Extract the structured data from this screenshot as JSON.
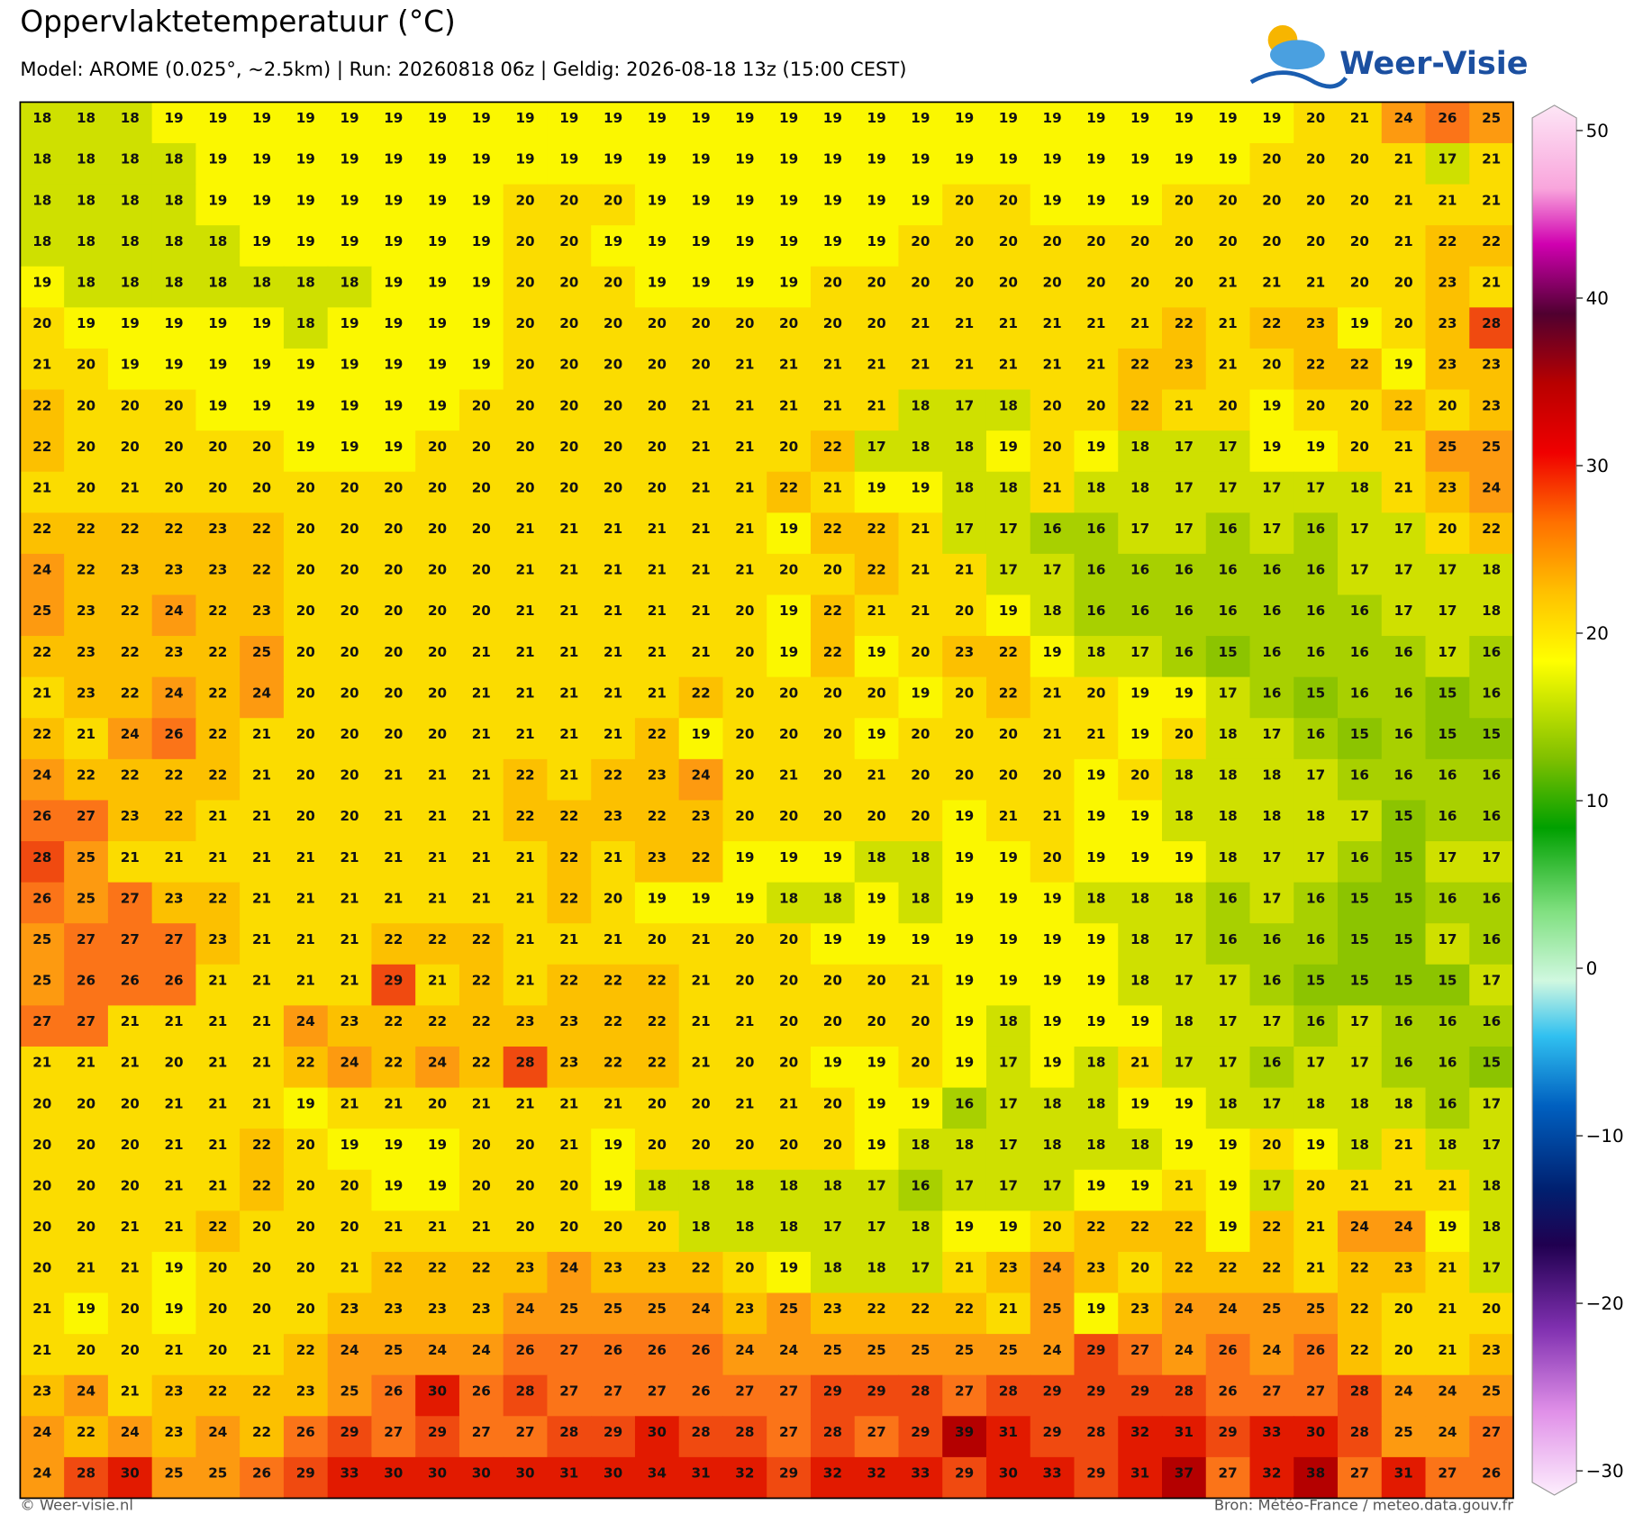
{
  "header": {
    "title": "Oppervlaktetemperatuur (°C)",
    "subtitle": "Model: AROME (0.025°, ~2.5km)  |  Run: 20260818 06z  |  Geldig: 2026-08-18 13z (15:00 CEST)",
    "logo": "Weer-Visie"
  },
  "grid": {
    "rows": [
      [
        18,
        18,
        18,
        19,
        19,
        19,
        19,
        19,
        19,
        19,
        19,
        19,
        19,
        19,
        19,
        19,
        19,
        19,
        19,
        19,
        19,
        19,
        19,
        19,
        19,
        19,
        19,
        19,
        19,
        20,
        21,
        24,
        26,
        25
      ],
      [
        18,
        18,
        18,
        18,
        19,
        19,
        19,
        19,
        19,
        19,
        19,
        19,
        19,
        19,
        19,
        19,
        19,
        19,
        19,
        19,
        19,
        19,
        19,
        19,
        19,
        19,
        19,
        19,
        20,
        20,
        20,
        21,
        17,
        21
      ],
      [
        18,
        18,
        18,
        18,
        19,
        19,
        19,
        19,
        19,
        19,
        19,
        20,
        20,
        20,
        19,
        19,
        19,
        19,
        19,
        19,
        19,
        20,
        20,
        19,
        19,
        19,
        20,
        20,
        20,
        20,
        20,
        21,
        21,
        21
      ],
      [
        18,
        18,
        18,
        18,
        18,
        19,
        19,
        19,
        19,
        19,
        19,
        20,
        20,
        19,
        19,
        19,
        19,
        19,
        19,
        19,
        20,
        20,
        20,
        20,
        20,
        20,
        20,
        20,
        20,
        20,
        20,
        21,
        22,
        22
      ],
      [
        19,
        18,
        18,
        18,
        18,
        18,
        18,
        18,
        19,
        19,
        19,
        20,
        20,
        20,
        19,
        19,
        19,
        19,
        20,
        20,
        20,
        20,
        20,
        20,
        20,
        20,
        20,
        21,
        21,
        21,
        20,
        20,
        23,
        21
      ],
      [
        20,
        19,
        19,
        19,
        19,
        19,
        18,
        19,
        19,
        19,
        19,
        20,
        20,
        20,
        20,
        20,
        20,
        20,
        20,
        20,
        21,
        21,
        21,
        21,
        21,
        21,
        22,
        21,
        22,
        23,
        19,
        20,
        23,
        28
      ],
      [
        21,
        20,
        19,
        19,
        19,
        19,
        19,
        19,
        19,
        19,
        19,
        20,
        20,
        20,
        20,
        20,
        21,
        21,
        21,
        21,
        21,
        21,
        21,
        21,
        21,
        22,
        23,
        21,
        20,
        22,
        22,
        19,
        23,
        23
      ],
      [
        22,
        20,
        20,
        20,
        19,
        19,
        19,
        19,
        19,
        19,
        20,
        20,
        20,
        20,
        20,
        21,
        21,
        21,
        21,
        21,
        18,
        17,
        18,
        20,
        20,
        22,
        21,
        20,
        19,
        20,
        20,
        22,
        20,
        23
      ],
      [
        22,
        20,
        20,
        20,
        20,
        20,
        19,
        19,
        19,
        20,
        20,
        20,
        20,
        20,
        20,
        21,
        21,
        20,
        22,
        17,
        18,
        18,
        19,
        20,
        19,
        18,
        17,
        17,
        19,
        19,
        20,
        21,
        25,
        25
      ],
      [
        21,
        20,
        21,
        20,
        20,
        20,
        20,
        20,
        20,
        20,
        20,
        20,
        20,
        20,
        20,
        21,
        21,
        22,
        21,
        19,
        19,
        18,
        18,
        21,
        18,
        18,
        17,
        17,
        17,
        17,
        18,
        21,
        23,
        24
      ],
      [
        22,
        22,
        22,
        22,
        23,
        22,
        20,
        20,
        20,
        20,
        20,
        21,
        21,
        21,
        21,
        21,
        21,
        19,
        22,
        22,
        21,
        17,
        17,
        16,
        16,
        17,
        17,
        16,
        17,
        16,
        17,
        17,
        20,
        22
      ],
      [
        24,
        22,
        23,
        23,
        23,
        22,
        20,
        20,
        20,
        20,
        20,
        21,
        21,
        21,
        21,
        21,
        21,
        20,
        20,
        22,
        21,
        21,
        17,
        17,
        16,
        16,
        16,
        16,
        16,
        16,
        17,
        17,
        17,
        18
      ],
      [
        25,
        23,
        22,
        24,
        22,
        23,
        20,
        20,
        20,
        20,
        20,
        21,
        21,
        21,
        21,
        21,
        20,
        19,
        22,
        21,
        21,
        20,
        19,
        18,
        16,
        16,
        16,
        16,
        16,
        16,
        16,
        17,
        17,
        18
      ],
      [
        22,
        23,
        22,
        23,
        22,
        25,
        20,
        20,
        20,
        20,
        21,
        21,
        21,
        21,
        21,
        21,
        20,
        19,
        22,
        19,
        20,
        23,
        22,
        19,
        18,
        17,
        16,
        15,
        16,
        16,
        16,
        16,
        17,
        16
      ],
      [
        21,
        23,
        22,
        24,
        22,
        24,
        20,
        20,
        20,
        20,
        21,
        21,
        21,
        21,
        21,
        22,
        20,
        20,
        20,
        20,
        19,
        20,
        22,
        21,
        20,
        19,
        19,
        17,
        16,
        15,
        16,
        16,
        15,
        16
      ],
      [
        22,
        21,
        24,
        26,
        22,
        21,
        20,
        20,
        20,
        20,
        21,
        21,
        21,
        21,
        22,
        19,
        20,
        20,
        20,
        19,
        20,
        20,
        20,
        21,
        21,
        19,
        20,
        18,
        17,
        16,
        15,
        16,
        15,
        15
      ],
      [
        24,
        22,
        22,
        22,
        22,
        21,
        20,
        20,
        21,
        21,
        21,
        22,
        21,
        22,
        23,
        24,
        20,
        21,
        20,
        21,
        20,
        20,
        20,
        20,
        19,
        20,
        18,
        18,
        18,
        17,
        16,
        16,
        16,
        16
      ],
      [
        26,
        27,
        23,
        22,
        21,
        21,
        20,
        20,
        21,
        21,
        21,
        22,
        22,
        23,
        22,
        23,
        20,
        20,
        20,
        20,
        20,
        19,
        21,
        21,
        19,
        19,
        18,
        18,
        18,
        18,
        17,
        15,
        16,
        16
      ],
      [
        28,
        25,
        21,
        21,
        21,
        21,
        21,
        21,
        21,
        21,
        21,
        21,
        22,
        21,
        23,
        22,
        19,
        19,
        19,
        18,
        18,
        19,
        19,
        20,
        19,
        19,
        19,
        18,
        17,
        17,
        16,
        15,
        17,
        17
      ],
      [
        26,
        25,
        27,
        23,
        22,
        21,
        21,
        21,
        21,
        21,
        21,
        21,
        22,
        20,
        19,
        19,
        19,
        18,
        18,
        19,
        18,
        19,
        19,
        19,
        18,
        18,
        18,
        16,
        17,
        16,
        15,
        15,
        16,
        16
      ],
      [
        25,
        27,
        27,
        27,
        23,
        21,
        21,
        21,
        22,
        22,
        22,
        21,
        21,
        21,
        20,
        21,
        20,
        20,
        19,
        19,
        19,
        19,
        19,
        19,
        19,
        18,
        17,
        16,
        16,
        16,
        15,
        15,
        17,
        16
      ],
      [
        25,
        26,
        26,
        26,
        21,
        21,
        21,
        21,
        29,
        21,
        22,
        21,
        22,
        22,
        22,
        21,
        20,
        20,
        20,
        20,
        21,
        19,
        19,
        19,
        19,
        18,
        17,
        17,
        16,
        15,
        15,
        15,
        15,
        17
      ],
      [
        27,
        27,
        21,
        21,
        21,
        21,
        24,
        23,
        22,
        22,
        22,
        23,
        23,
        22,
        22,
        21,
        21,
        20,
        20,
        20,
        20,
        19,
        18,
        19,
        19,
        19,
        18,
        17,
        17,
        16,
        17,
        16,
        16,
        16
      ],
      [
        21,
        21,
        21,
        20,
        21,
        21,
        22,
        24,
        22,
        24,
        22,
        28,
        23,
        22,
        22,
        21,
        20,
        20,
        19,
        19,
        20,
        19,
        17,
        19,
        18,
        21,
        17,
        17,
        16,
        17,
        17,
        16,
        16,
        15
      ],
      [
        20,
        20,
        20,
        21,
        21,
        21,
        19,
        21,
        21,
        20,
        21,
        21,
        21,
        21,
        20,
        20,
        21,
        21,
        20,
        19,
        19,
        16,
        17,
        18,
        18,
        19,
        19,
        18,
        17,
        18,
        18,
        18,
        16,
        17
      ],
      [
        20,
        20,
        20,
        21,
        21,
        22,
        20,
        19,
        19,
        19,
        20,
        20,
        21,
        19,
        20,
        20,
        20,
        20,
        20,
        19,
        18,
        18,
        17,
        18,
        18,
        18,
        19,
        19,
        20,
        19,
        18,
        21,
        18,
        17
      ],
      [
        20,
        20,
        20,
        21,
        21,
        22,
        20,
        20,
        19,
        19,
        20,
        20,
        20,
        19,
        18,
        18,
        18,
        18,
        18,
        17,
        16,
        17,
        17,
        17,
        19,
        19,
        21,
        19,
        17,
        20,
        21,
        21,
        21,
        18
      ],
      [
        20,
        20,
        21,
        21,
        22,
        20,
        20,
        20,
        21,
        21,
        21,
        20,
        20,
        20,
        20,
        18,
        18,
        18,
        17,
        17,
        18,
        19,
        19,
        20,
        22,
        22,
        22,
        19,
        22,
        21,
        24,
        24,
        19,
        18
      ],
      [
        20,
        21,
        21,
        19,
        20,
        20,
        20,
        21,
        22,
        22,
        22,
        23,
        24,
        23,
        23,
        22,
        20,
        19,
        18,
        18,
        17,
        21,
        23,
        24,
        23,
        20,
        22,
        22,
        22,
        21,
        22,
        23,
        21,
        17
      ],
      [
        21,
        19,
        20,
        19,
        20,
        20,
        20,
        23,
        23,
        23,
        23,
        24,
        25,
        25,
        25,
        24,
        23,
        25,
        23,
        22,
        22,
        22,
        21,
        25,
        19,
        23,
        24,
        24,
        25,
        25,
        22,
        20,
        21,
        20
      ],
      [
        21,
        20,
        20,
        21,
        20,
        21,
        22,
        24,
        25,
        24,
        24,
        26,
        27,
        26,
        26,
        26,
        24,
        24,
        25,
        25,
        25,
        25,
        25,
        24,
        29,
        27,
        24,
        26,
        24,
        26,
        22,
        20,
        21,
        23
      ],
      [
        23,
        24,
        21,
        23,
        22,
        22,
        23,
        25,
        26,
        30,
        26,
        28,
        27,
        27,
        27,
        26,
        27,
        27,
        29,
        29,
        28,
        27,
        28,
        29,
        29,
        29,
        28,
        26,
        27,
        27,
        28,
        24,
        24,
        25
      ],
      [
        24,
        22,
        24,
        23,
        24,
        22,
        26,
        29,
        27,
        29,
        27,
        27,
        28,
        29,
        30,
        28,
        28,
        27,
        28,
        27,
        29,
        39,
        31,
        29,
        28,
        32,
        31,
        29,
        33,
        30,
        28,
        25,
        24,
        27
      ],
      [
        24,
        28,
        30,
        25,
        25,
        26,
        29,
        33,
        30,
        30,
        30,
        30,
        31,
        30,
        34,
        31,
        32,
        29,
        32,
        32,
        33,
        29,
        30,
        33,
        29,
        31,
        37,
        27,
        32,
        38,
        27,
        31,
        27,
        26
      ]
    ]
  },
  "colorbar": {
    "ticks": [
      "50",
      "40",
      "30",
      "20",
      "10",
      "0",
      "−10",
      "−20",
      "−30"
    ]
  },
  "footer": {
    "left": "© Weer-visie.nl",
    "right": "Bron: Météo-France / meteo.data.gouv.fr"
  }
}
